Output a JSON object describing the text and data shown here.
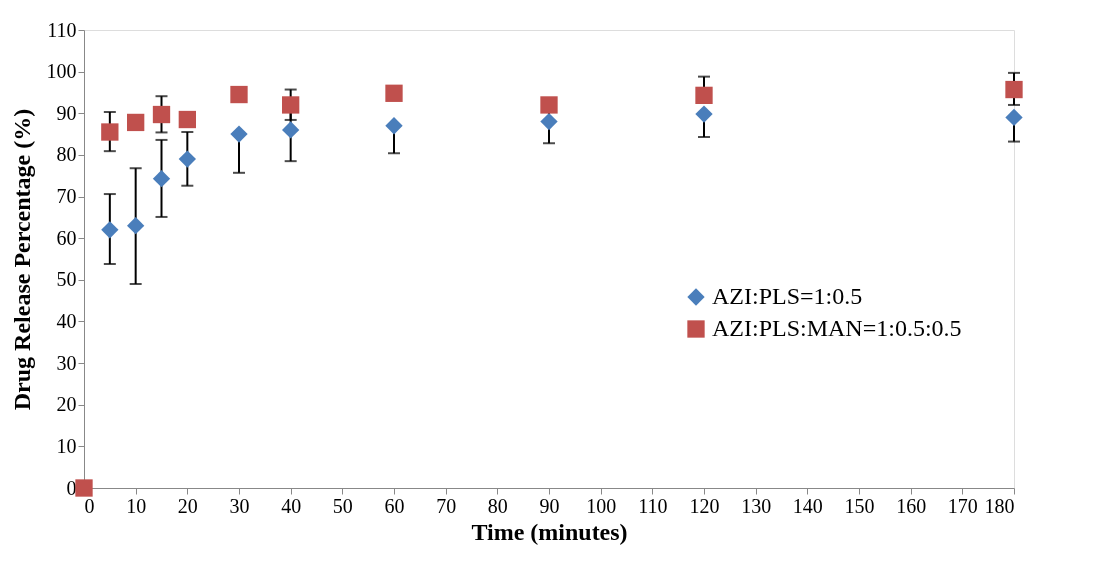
{
  "chart_data": {
    "type": "scatter",
    "xlabel": "Time (minutes)",
    "ylabel": "Drug Release Percentage (%)",
    "x": [
      0,
      5,
      10,
      15,
      20,
      30,
      40,
      60,
      90,
      120,
      180
    ],
    "series": [
      {
        "name": "AZI:PLS=1:0.5",
        "color": "#4a7ebb",
        "marker": "diamond",
        "values": [
          null,
          62,
          63,
          74.3,
          79,
          85,
          86,
          87,
          88,
          89.8,
          89
        ],
        "errors": [
          null,
          [
            53.8,
            70.6
          ],
          [
            49,
            76.8
          ],
          [
            65.1,
            83.6
          ],
          [
            72.6,
            85.5
          ],
          [
            75.7,
            85
          ],
          [
            78.5,
            93.5
          ],
          [
            80.4,
            87
          ],
          [
            82.8,
            93.2
          ],
          [
            84.3,
            89.8
          ],
          [
            83.2,
            89
          ]
        ]
      },
      {
        "name": "AZI:PLS:MAN=1:0.5:0.5",
        "color": "#c0504d",
        "marker": "square",
        "values": [
          0,
          85.5,
          87.8,
          89.7,
          88.5,
          94.5,
          92,
          94.8,
          92,
          94.3,
          95.7
        ],
        "errors": [
          null,
          [
            80.9,
            90.3
          ],
          null,
          [
            85.4,
            94.1
          ],
          null,
          null,
          [
            88.4,
            95.7
          ],
          null,
          null,
          [
            94.3,
            98.8
          ],
          [
            92,
            99.7
          ]
        ]
      }
    ],
    "xlim": [
      0,
      180
    ],
    "xticks": [
      0,
      10,
      20,
      30,
      40,
      50,
      60,
      70,
      80,
      90,
      100,
      110,
      120,
      130,
      140,
      150,
      160,
      170,
      180
    ],
    "ylim": [
      0,
      110
    ],
    "yticks": [
      0,
      10,
      20,
      30,
      40,
      50,
      60,
      70,
      80,
      90,
      100,
      110
    ],
    "grid": false,
    "legend": "right"
  }
}
